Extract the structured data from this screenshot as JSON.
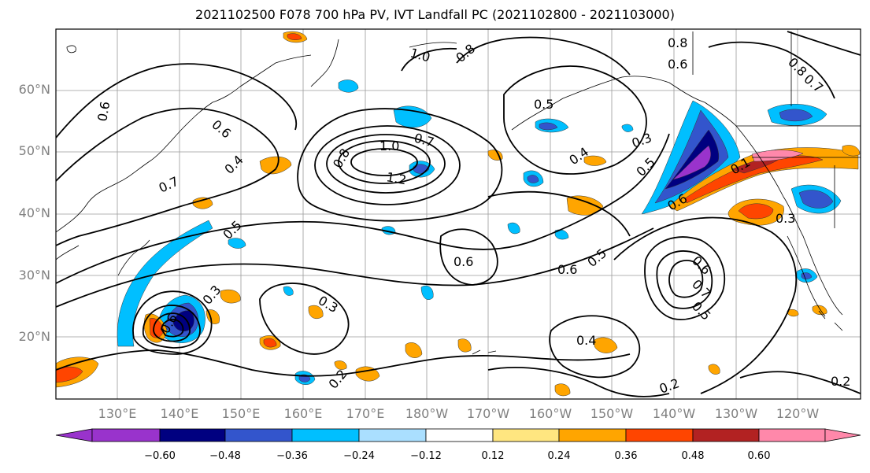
{
  "title": "2021102500 F078 700 hPa PV, IVT Landfall PC (2021102800 - 2021103000)",
  "lat_labels": [
    "60°N",
    "50°N",
    "40°N",
    "30°N",
    "20°N"
  ],
  "lon_labels": [
    "130°E",
    "140°E",
    "150°E",
    "160°E",
    "170°E",
    "180°W",
    "170°W",
    "160°W",
    "150°W",
    "140°W",
    "130°W",
    "120°W"
  ],
  "contour_labels": [
    "1.0",
    "0.8",
    "0.6",
    "0.5",
    "0.4",
    "0.7",
    "1.2",
    "1.0",
    "0.8",
    "0.7",
    "0.6",
    "0.5",
    "0.4",
    "0.3",
    "0.5",
    "0.6",
    "0.6",
    "0.5",
    "0.6",
    "0.7",
    "0.5",
    "0.3",
    "0.3",
    "0.6",
    "0.2",
    "0.4",
    "0.2",
    "0.2",
    "0.6",
    "0.7",
    "0.8",
    "0.3",
    "0.1",
    "0.6",
    "0.8"
  ],
  "colorbar": {
    "colors": [
      "#9933cc",
      "#000080",
      "#3355cc",
      "#00bfff",
      "#aadfff",
      "#ffffff",
      "#ffe680",
      "#ffa500",
      "#ff4500",
      "#b22222",
      "#ff88aa"
    ],
    "tick_labels": [
      "−0.60",
      "−0.48",
      "−0.36",
      "−0.24",
      "−0.12",
      "0.12",
      "0.24",
      "0.36",
      "0.48",
      "0.60"
    ]
  }
}
